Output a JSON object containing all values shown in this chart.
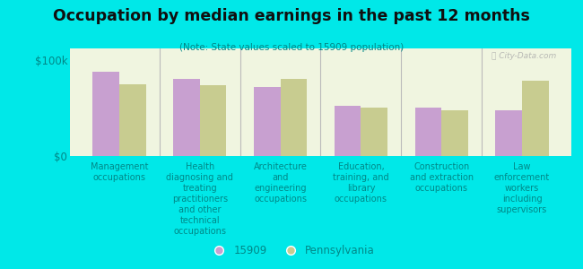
{
  "title": "Occupation by median earnings in the past 12 months",
  "subtitle": "(Note: State values scaled to 15909 population)",
  "background_color": "#00e8e8",
  "plot_bg_color": "#f0f5e0",
  "categories": [
    "Management\noccupations",
    "Health\ndiagnosing and\ntreating\npractitioners\nand other\ntechnical\noccupations",
    "Architecture\nand\nengineering\noccupations",
    "Education,\ntraining, and\nlibrary\noccupations",
    "Construction\nand extraction\noccupations",
    "Law\nenforcement\nworkers\nincluding\nsupervisors"
  ],
  "values_15909": [
    88000,
    80000,
    72000,
    52000,
    50000,
    48000
  ],
  "values_pennsylvania": [
    75000,
    74000,
    80000,
    50000,
    48000,
    78000
  ],
  "color_15909": "#c8a0d0",
  "color_pennsylvania": "#c8cc90",
  "ylim": [
    0,
    112000
  ],
  "yticks": [
    0,
    100000
  ],
  "ytick_labels": [
    "$0",
    "$100k"
  ],
  "legend_label_15909": "15909",
  "legend_label_pa": "Pennsylvania",
  "watermark": "Ⓡ City-Data.com",
  "label_color": "#008888",
  "title_color": "#101010"
}
